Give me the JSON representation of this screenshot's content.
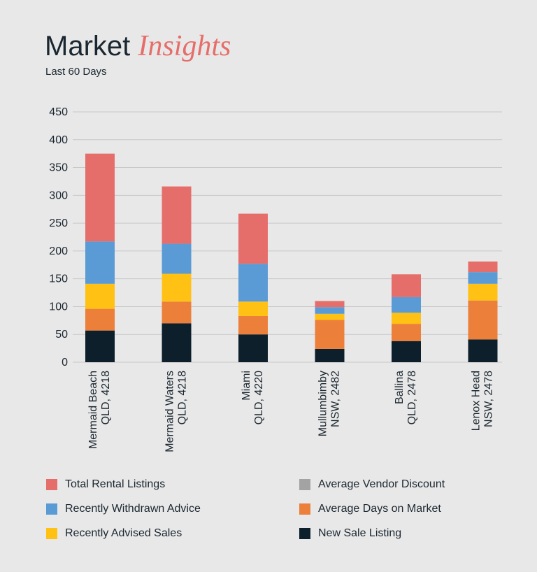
{
  "header": {
    "title_main": "Market",
    "title_accent": "Insights",
    "subtitle": "Last 60 Days"
  },
  "chart_data": {
    "type": "bar",
    "stacked": true,
    "categories": [
      [
        "Mermaid Beach",
        "QLD, 4218"
      ],
      [
        "Mermaid Waters",
        "QLD, 4218"
      ],
      [
        "Miami",
        "QLD, 4220"
      ],
      [
        "Mullumbimby",
        "NSW, 2482"
      ],
      [
        "Ballina",
        "QLD, 2478"
      ],
      [
        "Lenox Head",
        "NSW, 2478"
      ]
    ],
    "series": [
      {
        "name": "New Sale Listing",
        "color": "#0c1f2b",
        "values": [
          57,
          70,
          50,
          24,
          38,
          41
        ]
      },
      {
        "name": "Average Days on Market",
        "color": "#ec7f3a",
        "values": [
          39,
          39,
          33,
          52,
          31,
          70
        ]
      },
      {
        "name": "Average Vendor Discount",
        "color": "#a3a3a3",
        "values": [
          0,
          0,
          0,
          0,
          0,
          0
        ]
      },
      {
        "name": "Recently Advised Sales",
        "color": "#fec114",
        "values": [
          45,
          50,
          26,
          11,
          20,
          30
        ]
      },
      {
        "name": "Recently Withdrawn Advice",
        "color": "#5b9bd5",
        "values": [
          76,
          54,
          68,
          12,
          28,
          21
        ]
      },
      {
        "name": "Total Rental Listings",
        "color": "#e66e6a",
        "values": [
          158,
          103,
          90,
          11,
          41,
          19
        ]
      }
    ],
    "yticks": [
      0,
      50,
      100,
      150,
      200,
      250,
      300,
      350,
      400,
      450
    ],
    "ylim": [
      0,
      450
    ],
    "grid": true,
    "legend_order": [
      "Total Rental Listings",
      "Average Vendor Discount",
      "Recently Withdrawn Advice",
      "Average Days on Market",
      "Recently Advised Sales",
      "New Sale Listing"
    ],
    "legend_placement": "bottom"
  }
}
